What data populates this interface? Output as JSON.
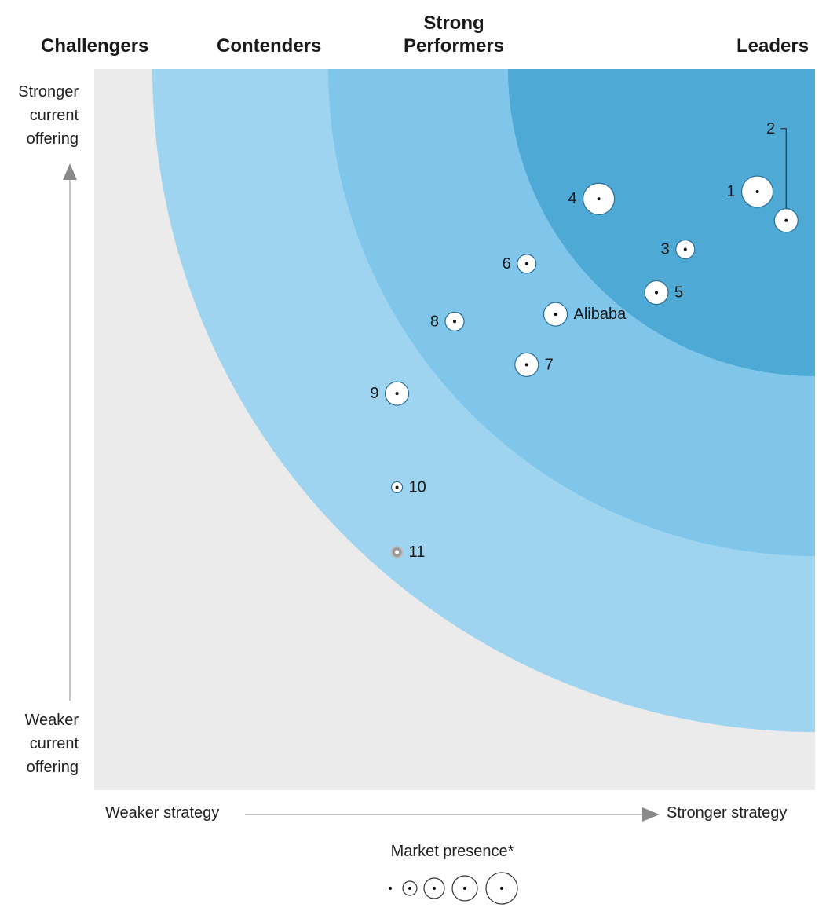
{
  "chart_data": {
    "type": "scatter",
    "segments": [
      "Challengers",
      "Contenders",
      "Strong Performers",
      "Leaders"
    ],
    "y_axis": {
      "top_label": [
        "Stronger",
        "current",
        "offering"
      ],
      "bottom_label": [
        "Weaker",
        "current",
        "offering"
      ]
    },
    "x_axis": {
      "left_label": "Weaker strategy",
      "right_label": "Stronger strategy"
    },
    "xlim": [
      0,
      100
    ],
    "ylim": [
      0,
      100
    ],
    "points": [
      {
        "label": "1",
        "x": 92,
        "y": 83,
        "size": 4
      },
      {
        "label": "2",
        "x": 96,
        "y": 79,
        "size": 2
      },
      {
        "label": "3",
        "x": 82,
        "y": 75,
        "size": 1
      },
      {
        "label": "4",
        "x": 70,
        "y": 82,
        "size": 4
      },
      {
        "label": "5",
        "x": 78,
        "y": 69,
        "size": 2
      },
      {
        "label": "6",
        "x": 60,
        "y": 73,
        "size": 1
      },
      {
        "label": "7",
        "x": 60,
        "y": 59,
        "size": 2
      },
      {
        "label": "8",
        "x": 50,
        "y": 65,
        "size": 1
      },
      {
        "label": "Alibaba",
        "x": 64,
        "y": 66,
        "size": 2
      },
      {
        "label": "9",
        "x": 42,
        "y": 55,
        "size": 2
      },
      {
        "label": "10",
        "x": 42,
        "y": 42,
        "size": 0
      },
      {
        "label": "11",
        "x": 42,
        "y": 33,
        "size": 0,
        "muted": true
      }
    ],
    "legend": {
      "title": "Market presence*",
      "sizes": [
        0,
        1,
        2,
        3,
        4
      ]
    }
  },
  "colors": {
    "background": "#ebebeb",
    "ring_outer": "#9ed4f0",
    "ring_middle": "#7fc6ea",
    "ring_inner": "#4ea9d5",
    "marker_fill": "#ffffff",
    "marker_stroke": "#2a6f96",
    "muted_marker": "#9a9a9a",
    "axis": "#999999"
  }
}
